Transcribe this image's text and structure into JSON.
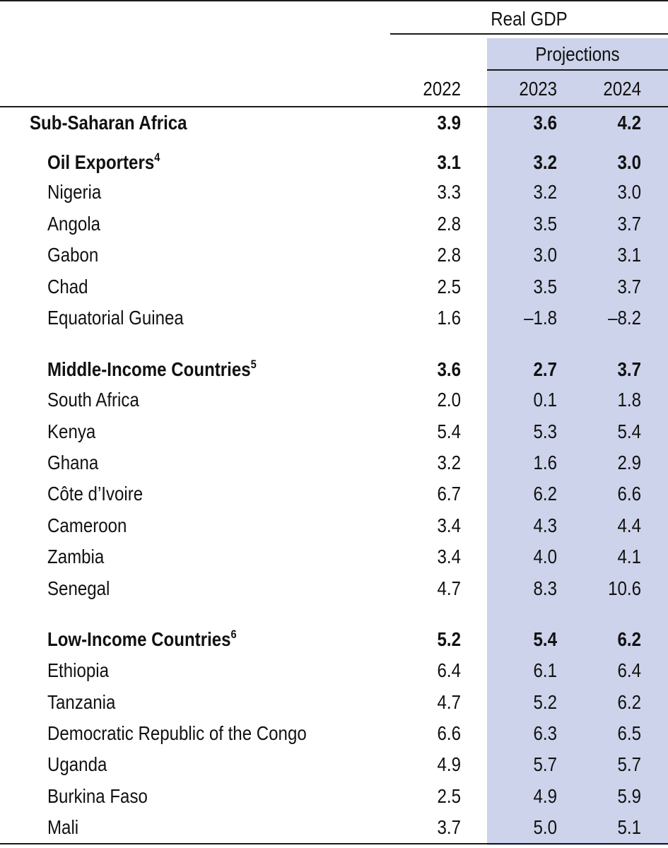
{
  "header": {
    "real_gdp": "Real GDP",
    "projections": "Projections",
    "years": [
      "2022",
      "2023",
      "2024"
    ]
  },
  "rows": [
    {
      "label": "Sub-Saharan Africa",
      "sup": "",
      "bold": true,
      "level": 0,
      "values": [
        "3.9",
        "3.6",
        "4.2"
      ]
    },
    {
      "label": "Oil Exporters",
      "sup": "4",
      "bold": true,
      "level": 1,
      "values": [
        "3.1",
        "3.2",
        "3.0"
      ]
    },
    {
      "label": "Nigeria",
      "sup": "",
      "bold": false,
      "level": 1,
      "values": [
        "3.3",
        "3.2",
        "3.0"
      ]
    },
    {
      "label": "Angola",
      "sup": "",
      "bold": false,
      "level": 1,
      "values": [
        "2.8",
        "3.5",
        "3.7"
      ]
    },
    {
      "label": "Gabon",
      "sup": "",
      "bold": false,
      "level": 1,
      "values": [
        "2.8",
        "3.0",
        "3.1"
      ]
    },
    {
      "label": "Chad",
      "sup": "",
      "bold": false,
      "level": 1,
      "values": [
        "2.5",
        "3.5",
        "3.7"
      ]
    },
    {
      "label": "Equatorial Guinea",
      "sup": "",
      "bold": false,
      "level": 1,
      "values": [
        "1.6",
        "–1.8",
        "–8.2"
      ]
    },
    {
      "label": "Middle-Income Countries",
      "sup": "5",
      "bold": true,
      "level": 1,
      "values": [
        "3.6",
        "2.7",
        "3.7"
      ]
    },
    {
      "label": "South Africa",
      "sup": "",
      "bold": false,
      "level": 1,
      "values": [
        "2.0",
        "0.1",
        "1.8"
      ]
    },
    {
      "label": "Kenya",
      "sup": "",
      "bold": false,
      "level": 1,
      "values": [
        "5.4",
        "5.3",
        "5.4"
      ]
    },
    {
      "label": "Ghana",
      "sup": "",
      "bold": false,
      "level": 1,
      "values": [
        "3.2",
        "1.6",
        "2.9"
      ]
    },
    {
      "label": "Côte d’Ivoire",
      "sup": "",
      "bold": false,
      "level": 1,
      "values": [
        "6.7",
        "6.2",
        "6.6"
      ]
    },
    {
      "label": "Cameroon",
      "sup": "",
      "bold": false,
      "level": 1,
      "values": [
        "3.4",
        "4.3",
        "4.4"
      ]
    },
    {
      "label": "Zambia",
      "sup": "",
      "bold": false,
      "level": 1,
      "values": [
        "3.4",
        "4.0",
        "4.1"
      ]
    },
    {
      "label": "Senegal",
      "sup": "",
      "bold": false,
      "level": 1,
      "values": [
        "4.7",
        "8.3",
        "10.6"
      ]
    },
    {
      "label": "Low-Income Countries",
      "sup": "6",
      "bold": true,
      "level": 1,
      "values": [
        "5.2",
        "5.4",
        "6.2"
      ]
    },
    {
      "label": "Ethiopia",
      "sup": "",
      "bold": false,
      "level": 1,
      "values": [
        "6.4",
        "6.1",
        "6.4"
      ]
    },
    {
      "label": "Tanzania",
      "sup": "",
      "bold": false,
      "level": 1,
      "values": [
        "4.7",
        "5.2",
        "6.2"
      ]
    },
    {
      "label": "Democratic Republic of the Congo",
      "sup": "",
      "bold": false,
      "level": 1,
      "values": [
        "6.6",
        "6.3",
        "6.5"
      ]
    },
    {
      "label": "Uganda",
      "sup": "",
      "bold": false,
      "level": 1,
      "values": [
        "4.9",
        "5.7",
        "5.7"
      ]
    },
    {
      "label": "Burkina Faso",
      "sup": "",
      "bold": false,
      "level": 1,
      "values": [
        "2.5",
        "4.9",
        "5.9"
      ]
    },
    {
      "label": "Mali",
      "sup": "",
      "bold": false,
      "level": 1,
      "values": [
        "3.7",
        "5.0",
        "5.1"
      ]
    }
  ]
}
